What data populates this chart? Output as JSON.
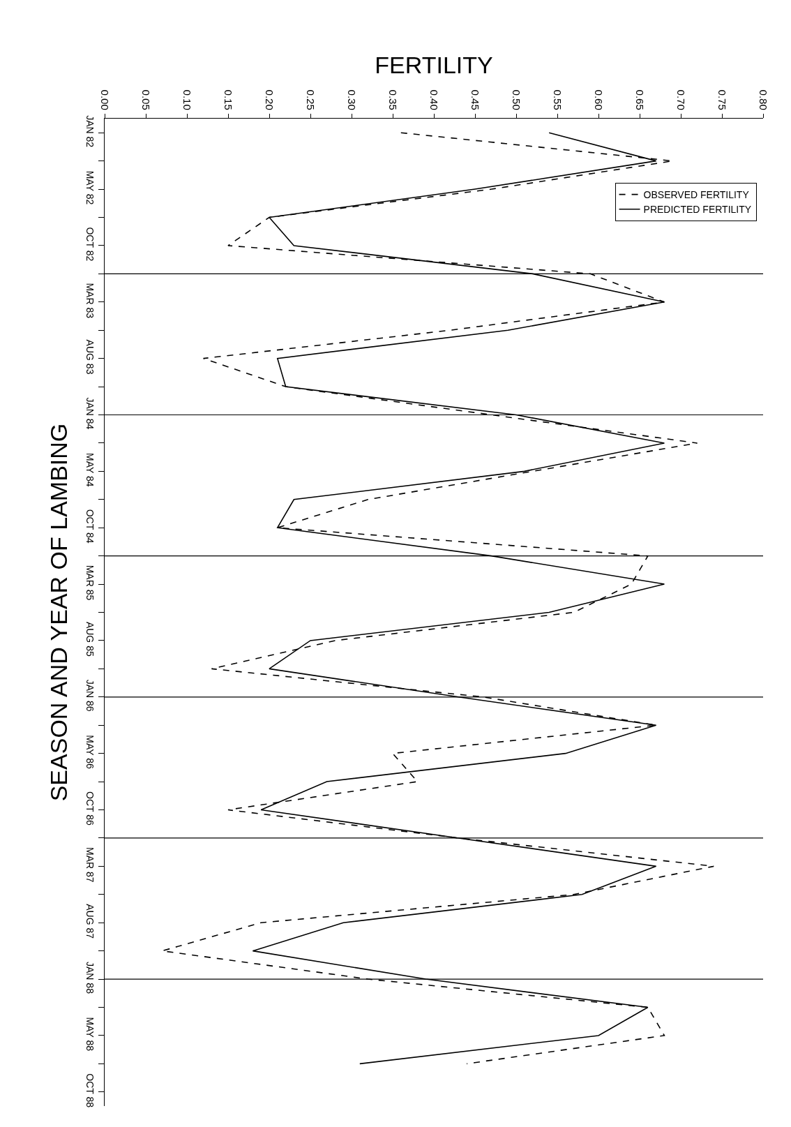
{
  "chart_data": {
    "type": "line",
    "orientation": "horizontal",
    "xlabel": "FERTILITY",
    "ylabel": "SEASON AND YEAR OF LAMBING",
    "categories": [
      "JAN 82",
      null,
      "MAY 82",
      null,
      "OCT 82",
      null,
      "MAR 83",
      null,
      "AUG 83",
      null,
      "JAN 84",
      null,
      "MAY 84",
      null,
      "OCT 84",
      null,
      "MAR 85",
      null,
      "AUG 85",
      null,
      "JAN 86",
      null,
      "MAY 86",
      null,
      "OCT 86",
      null,
      "MAR 87",
      null,
      "AUG 87",
      null,
      "JAN 88",
      null,
      "MAY 88",
      null,
      "OCT 88"
    ],
    "series": [
      {
        "name": "OBSERVED FERTILITY",
        "color": "#000000",
        "line_style": "dashed",
        "values": [
          0.36,
          0.69,
          0.47,
          0.2,
          0.15,
          0.59,
          0.68,
          0.42,
          0.12,
          0.22,
          0.47,
          0.72,
          0.52,
          0.32,
          0.21,
          0.66,
          0.64,
          0.57,
          0.28,
          0.13,
          0.46,
          0.67,
          0.35,
          0.38,
          0.15,
          0.43,
          0.74,
          0.57,
          0.19,
          0.07,
          0.32,
          0.66,
          0.68,
          0.44,
          null
        ]
      },
      {
        "name": "PREDICTED FERTILITY",
        "color": "#000000",
        "line_style": "solid",
        "values": [
          0.54,
          0.67,
          0.45,
          0.2,
          0.23,
          0.52,
          0.68,
          0.49,
          0.21,
          0.22,
          0.5,
          0.68,
          0.51,
          0.23,
          0.21,
          0.47,
          0.68,
          0.54,
          0.25,
          0.2,
          0.43,
          0.67,
          0.56,
          0.27,
          0.19,
          0.43,
          0.67,
          0.58,
          0.29,
          0.18,
          0.39,
          0.66,
          0.6,
          0.31,
          null
        ]
      }
    ],
    "xlim": [
      0,
      0.8
    ],
    "xticks": [
      {
        "value": 0,
        "label": "0.00"
      },
      {
        "value": 0.05,
        "label": "0.05"
      },
      {
        "value": 0.1,
        "label": "0.10"
      },
      {
        "value": 0.15,
        "label": "0.15"
      },
      {
        "value": 0.2,
        "label": "0.20"
      },
      {
        "value": 0.25,
        "label": "0.25"
      },
      {
        "value": 0.3,
        "label": "0.30"
      },
      {
        "value": 0.35,
        "label": "0.35"
      },
      {
        "value": 0.4,
        "label": "0.40"
      },
      {
        "value": 0.45,
        "label": "0.45"
      },
      {
        "value": 0.5,
        "label": "0.50"
      },
      {
        "value": 0.55,
        "label": "0.55"
      },
      {
        "value": 0.6,
        "label": "0.60"
      },
      {
        "value": 0.65,
        "label": "0.65"
      },
      {
        "value": 0.7,
        "label": "0.70"
      },
      {
        "value": 0.75,
        "label": "0.75"
      },
      {
        "value": 0.8,
        "label": "0.80"
      }
    ],
    "legend": "top right"
  }
}
